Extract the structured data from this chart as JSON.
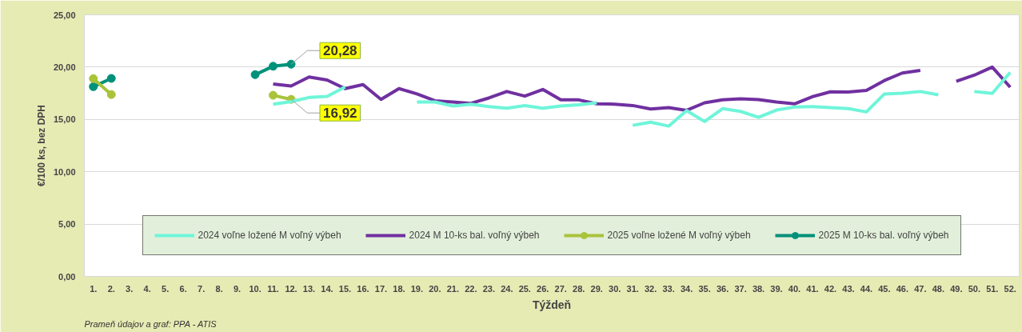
{
  "chart_data": {
    "type": "line",
    "xlabel": "Týždeň",
    "ylabel": "€/100 ks, bez DPH",
    "annotations": [
      "Prameň údajov a graf: PPA - ATIS"
    ],
    "categories": [
      "1.",
      "2.",
      "3.",
      "4.",
      "5.",
      "6.",
      "7.",
      "8.",
      "9.",
      "10.",
      "11.",
      "12.",
      "13.",
      "14.",
      "15.",
      "16.",
      "17.",
      "18.",
      "19.",
      "20.",
      "21.",
      "22.",
      "23.",
      "24.",
      "25.",
      "26.",
      "27.",
      "28.",
      "29.",
      "30.",
      "31.",
      "32.",
      "33.",
      "34.",
      "35.",
      "36.",
      "37.",
      "38.",
      "39.",
      "40.",
      "41.",
      "42.",
      "43.",
      "44.",
      "45.",
      "46.",
      "47.",
      "48.",
      "49.",
      "50.",
      "51.",
      "52."
    ],
    "series": [
      {
        "name": "2024 voľne ložené M voľný výbeh",
        "color": "#6ff5d9",
        "marker": "none",
        "values": [
          null,
          null,
          null,
          null,
          null,
          null,
          null,
          null,
          null,
          null,
          16.46,
          16.7,
          17.1,
          17.2,
          18.1,
          null,
          null,
          null,
          16.67,
          16.67,
          16.28,
          16.46,
          16.23,
          16.08,
          16.33,
          16.08,
          16.28,
          16.4,
          16.59,
          null,
          14.44,
          14.74,
          14.36,
          15.85,
          14.8,
          16.03,
          15.77,
          15.2,
          15.9,
          16.18,
          16.23,
          16.13,
          16.03,
          15.72,
          17.44,
          17.51,
          17.67,
          17.36,
          null,
          17.67,
          17.49,
          19.49
        ]
      },
      {
        "name": "2024 M 10-ks bal. voľný výbeh",
        "color": "#7030a0",
        "marker": "none",
        "values": [
          null,
          null,
          null,
          null,
          null,
          null,
          null,
          null,
          null,
          null,
          18.38,
          18.2,
          19.05,
          18.77,
          17.95,
          18.33,
          16.92,
          17.95,
          17.44,
          16.79,
          16.67,
          16.54,
          17.05,
          17.67,
          17.23,
          17.87,
          16.87,
          16.87,
          16.49,
          16.46,
          16.33,
          16.0,
          16.13,
          15.87,
          16.59,
          16.87,
          16.97,
          16.9,
          16.67,
          16.49,
          17.18,
          17.64,
          17.62,
          17.77,
          18.72,
          19.44,
          19.69,
          null,
          18.64,
          19.23,
          20.0,
          18.08
        ]
      },
      {
        "name": "2025 voľne ložené M voľný výbeh",
        "color": "#a9c33a",
        "marker": "circle",
        "values": [
          18.9,
          17.38,
          null,
          null,
          null,
          null,
          null,
          null,
          null,
          null,
          17.31,
          16.92,
          null,
          null,
          null,
          null,
          null,
          null,
          null,
          null,
          null,
          null,
          null,
          null,
          null,
          null,
          null,
          null,
          null,
          null,
          null,
          null,
          null,
          null,
          null,
          null,
          null,
          null,
          null,
          null,
          null,
          null,
          null,
          null,
          null,
          null,
          null,
          null,
          null,
          null,
          null,
          null
        ],
        "value_labels": [
          null,
          null,
          null,
          null,
          null,
          null,
          null,
          null,
          null,
          null,
          null,
          "16,92",
          null,
          null,
          null,
          null,
          null,
          null,
          null,
          null,
          null,
          null,
          null,
          null,
          null,
          null,
          null,
          null,
          null,
          null,
          null,
          null,
          null,
          null,
          null,
          null,
          null,
          null,
          null,
          null,
          null,
          null,
          null,
          null,
          null,
          null,
          null,
          null,
          null,
          null,
          null,
          null
        ]
      },
      {
        "name": "2025 M 10-ks bal. voľný výbeh",
        "color": "#00917a",
        "marker": "circle",
        "values": [
          18.13,
          18.92,
          null,
          null,
          null,
          null,
          null,
          null,
          null,
          19.28,
          20.08,
          20.28,
          null,
          null,
          null,
          null,
          null,
          null,
          null,
          null,
          null,
          null,
          null,
          null,
          null,
          null,
          null,
          null,
          null,
          null,
          null,
          null,
          null,
          null,
          null,
          null,
          null,
          null,
          null,
          null,
          null,
          null,
          null,
          null,
          null,
          null,
          null,
          null,
          null,
          null,
          null,
          null
        ],
        "value_labels": [
          null,
          null,
          null,
          null,
          null,
          null,
          null,
          null,
          null,
          null,
          null,
          "20,28",
          null,
          null,
          null,
          null,
          null,
          null,
          null,
          null,
          null,
          null,
          null,
          null,
          null,
          null,
          null,
          null,
          null,
          null,
          null,
          null,
          null,
          null,
          null,
          null,
          null,
          null,
          null,
          null,
          null,
          null,
          null,
          null,
          null,
          null,
          null,
          null,
          null,
          null,
          null,
          null
        ]
      }
    ],
    "ylim": [
      0,
      25
    ],
    "yticks": [
      {
        "value": 0,
        "label": "0,00"
      },
      {
        "value": 5,
        "label": "5,00"
      },
      {
        "value": 10,
        "label": "10,00"
      },
      {
        "value": 15,
        "label": "15,00"
      },
      {
        "value": 20,
        "label": "20,00"
      },
      {
        "value": 25,
        "label": "25,00"
      }
    ],
    "grid": "y",
    "legend": "bottom",
    "line_style": "solid"
  }
}
